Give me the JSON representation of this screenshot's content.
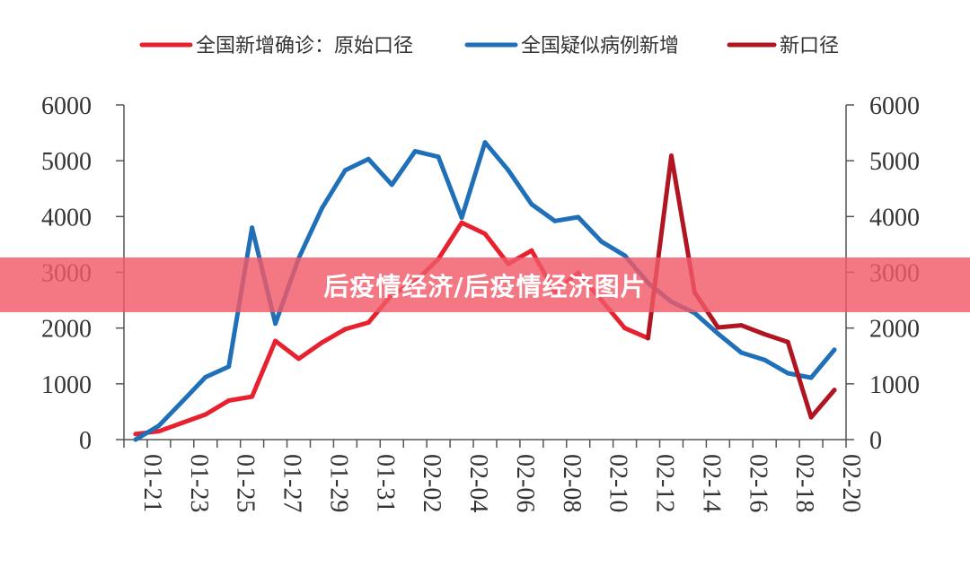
{
  "overlay": {
    "caption": "后疫情经济/后疫情经济图片"
  },
  "chart_data": {
    "type": "line",
    "x": [
      "01-21",
      "01-22",
      "01-23",
      "01-24",
      "01-25",
      "01-26",
      "01-27",
      "01-28",
      "01-29",
      "01-30",
      "01-31",
      "02-01",
      "02-02",
      "02-03",
      "02-04",
      "02-05",
      "02-06",
      "02-07",
      "02-08",
      "02-09",
      "02-10",
      "02-11",
      "02-12",
      "02-13",
      "02-14",
      "02-15",
      "02-16",
      "02-17",
      "02-18",
      "02-19",
      "02-20"
    ],
    "xticks": [
      "01-21",
      "01-23",
      "01-25",
      "01-27",
      "01-29",
      "01-31",
      "02-02",
      "02-04",
      "02-06",
      "02-08",
      "02-10",
      "02-12",
      "02-14",
      "02-16",
      "02-18",
      "02-20"
    ],
    "ylim": [
      0,
      6000
    ],
    "yticks": [
      0,
      1000,
      2000,
      3000,
      4000,
      5000,
      6000
    ],
    "legend_position": "top",
    "series": [
      {
        "name": "全国新增确诊：原始口径",
        "color": "#e8212e",
        "values": [
          100,
          150,
          300,
          450,
          700,
          770,
          1770,
          1450,
          1740,
          1980,
          2100,
          2600,
          2830,
          3240,
          3890,
          3690,
          3150,
          3390,
          2650,
          2990,
          2500,
          2000,
          1820,
          null,
          null,
          null,
          null,
          null,
          null,
          null,
          null
        ]
      },
      {
        "name": "全国疑似病例新增",
        "color": "#1f70b8",
        "values": [
          0,
          250,
          680,
          1120,
          1310,
          3800,
          2080,
          3250,
          4150,
          4830,
          5030,
          4570,
          5170,
          5070,
          3980,
          5330,
          4830,
          4220,
          3920,
          3990,
          3550,
          3300,
          2810,
          2470,
          2270,
          1900,
          1560,
          1430,
          1190,
          1110,
          1610
        ]
      },
      {
        "name": "新口径",
        "color": "#b01522",
        "values": [
          null,
          null,
          null,
          null,
          null,
          null,
          null,
          null,
          null,
          null,
          null,
          null,
          null,
          null,
          null,
          null,
          null,
          null,
          null,
          null,
          null,
          null,
          1820,
          5090,
          2640,
          2010,
          2050,
          1890,
          1750,
          400,
          890
        ]
      }
    ]
  }
}
